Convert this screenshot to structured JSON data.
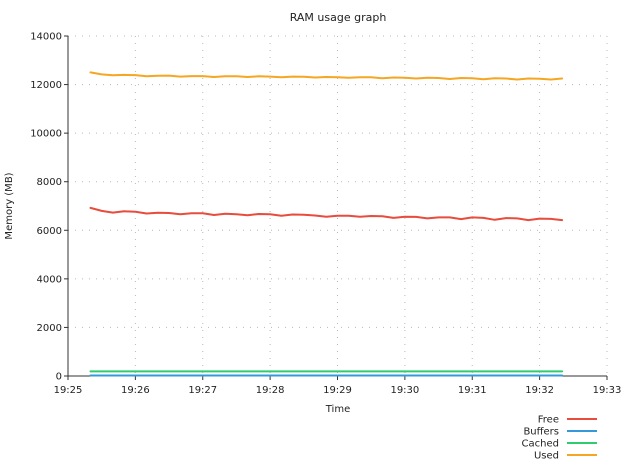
{
  "chart_data": {
    "type": "line",
    "title": "RAM usage graph",
    "xlabel": "Time",
    "ylabel": "Memory (MB)",
    "ylim": [
      0,
      14000
    ],
    "xlim": [
      "19:25",
      "19:33"
    ],
    "grid": true,
    "legend_position": "bottom-right",
    "x_ticks": [
      "19:25",
      "19:26",
      "19:27",
      "19:28",
      "19:29",
      "19:30",
      "19:31",
      "19:32",
      "19:33"
    ],
    "y_ticks": [
      0,
      2000,
      4000,
      6000,
      8000,
      10000,
      12000,
      14000
    ],
    "x": [
      "19:25:20",
      "19:25:30",
      "19:25:40",
      "19:25:50",
      "19:26:00",
      "19:26:10",
      "19:26:20",
      "19:26:30",
      "19:26:40",
      "19:26:50",
      "19:27:00",
      "19:27:10",
      "19:27:20",
      "19:27:30",
      "19:27:40",
      "19:27:50",
      "19:28:00",
      "19:28:10",
      "19:28:20",
      "19:28:30",
      "19:28:40",
      "19:28:50",
      "19:29:00",
      "19:29:10",
      "19:29:20",
      "19:29:30",
      "19:29:40",
      "19:29:50",
      "19:30:00",
      "19:30:10",
      "19:30:20",
      "19:30:30",
      "19:30:40",
      "19:30:50",
      "19:31:00",
      "19:31:10",
      "19:31:20",
      "19:31:30",
      "19:31:40",
      "19:31:50",
      "19:32:00",
      "19:32:10",
      "19:32:20"
    ],
    "series": [
      {
        "name": "Free",
        "color": "#e74c3c",
        "values": [
          6920,
          6800,
          6730,
          6780,
          6760,
          6690,
          6720,
          6710,
          6660,
          6700,
          6700,
          6630,
          6680,
          6660,
          6620,
          6670,
          6660,
          6600,
          6650,
          6640,
          6610,
          6560,
          6600,
          6600,
          6560,
          6590,
          6580,
          6510,
          6560,
          6550,
          6490,
          6530,
          6530,
          6460,
          6530,
          6510,
          6430,
          6500,
          6490,
          6420,
          6480,
          6470,
          6420
        ]
      },
      {
        "name": "Buffers",
        "color": "#3498db",
        "values": [
          20,
          20,
          20,
          20,
          20,
          20,
          20,
          20,
          20,
          20,
          20,
          20,
          20,
          20,
          20,
          20,
          20,
          20,
          20,
          20,
          20,
          20,
          20,
          20,
          20,
          20,
          20,
          20,
          20,
          20,
          20,
          20,
          20,
          20,
          20,
          20,
          20,
          20,
          20,
          20,
          20,
          20,
          20
        ]
      },
      {
        "name": "Cached",
        "color": "#2ecc71",
        "values": [
          190,
          190,
          190,
          190,
          190,
          190,
          190,
          190,
          190,
          190,
          190,
          190,
          190,
          190,
          190,
          190,
          190,
          190,
          190,
          190,
          190,
          190,
          190,
          190,
          190,
          190,
          190,
          190,
          190,
          190,
          190,
          190,
          190,
          190,
          190,
          190,
          190,
          190,
          190,
          190,
          190,
          190,
          190
        ]
      },
      {
        "name": "Used",
        "color": "#f5a623",
        "values": [
          12500,
          12420,
          12380,
          12400,
          12390,
          12340,
          12360,
          12370,
          12330,
          12350,
          12350,
          12310,
          12340,
          12340,
          12310,
          12340,
          12330,
          12300,
          12330,
          12320,
          12290,
          12310,
          12300,
          12280,
          12300,
          12300,
          12260,
          12290,
          12280,
          12250,
          12280,
          12270,
          12230,
          12270,
          12260,
          12220,
          12260,
          12250,
          12210,
          12250,
          12240,
          12210,
          12250
        ]
      }
    ]
  }
}
